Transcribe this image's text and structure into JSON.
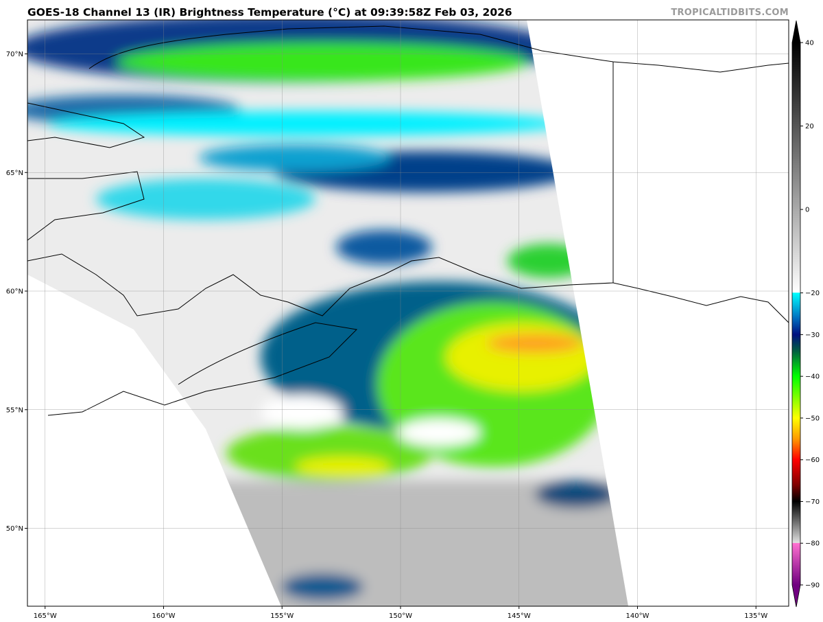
{
  "title": "GOES-18 Channel 13 (IR) Brightness Temperature (°C) at 09:39:58Z Feb 03, 2026",
  "watermark": "TROPICALTIDBITS.COM",
  "map": {
    "lon_ticks": [
      {
        "value": -165,
        "label": "165°W"
      },
      {
        "value": -160,
        "label": "160°W"
      },
      {
        "value": -155,
        "label": "155°W"
      },
      {
        "value": -150,
        "label": "150°W"
      },
      {
        "value": -145,
        "label": "145°W"
      },
      {
        "value": -140,
        "label": "140°W"
      },
      {
        "value": -135,
        "label": "135°W"
      }
    ],
    "lat_ticks": [
      {
        "value": 70,
        "label": "70°N"
      },
      {
        "value": 65,
        "label": "65°N"
      },
      {
        "value": 60,
        "label": "60°N"
      },
      {
        "value": 55,
        "label": "55°N"
      },
      {
        "value": 50,
        "label": "50°N"
      }
    ],
    "gridlines": true
  },
  "colorbar": {
    "range": [
      -90,
      40
    ],
    "ticks": [
      {
        "value": 40,
        "label": "40"
      },
      {
        "value": 20,
        "label": "20"
      },
      {
        "value": 0,
        "label": "0"
      },
      {
        "value": -20,
        "label": "−20"
      },
      {
        "value": -30,
        "label": "−30"
      },
      {
        "value": -40,
        "label": "−40"
      },
      {
        "value": -50,
        "label": "−50"
      },
      {
        "value": -60,
        "label": "−60"
      },
      {
        "value": -70,
        "label": "−70"
      },
      {
        "value": -80,
        "label": "−80"
      },
      {
        "value": -90,
        "label": "−90"
      }
    ],
    "stops": [
      {
        "value": 40,
        "color": "#000000"
      },
      {
        "value": -19.9,
        "color": "#ffffff"
      },
      {
        "value": -20,
        "color": "#00ffff"
      },
      {
        "value": -26,
        "color": "#0070c0"
      },
      {
        "value": -30,
        "color": "#001080"
      },
      {
        "value": -34,
        "color": "#006040"
      },
      {
        "value": -40,
        "color": "#00ff00"
      },
      {
        "value": -50,
        "color": "#ffff00"
      },
      {
        "value": -55,
        "color": "#ff9900"
      },
      {
        "value": -60,
        "color": "#ff0000"
      },
      {
        "value": -66,
        "color": "#800000"
      },
      {
        "value": -70,
        "color": "#000000"
      },
      {
        "value": -79.9,
        "color": "#e0e0e0"
      },
      {
        "value": -80,
        "color": "#ff70d0"
      },
      {
        "value": -90,
        "color": "#700080"
      }
    ]
  }
}
